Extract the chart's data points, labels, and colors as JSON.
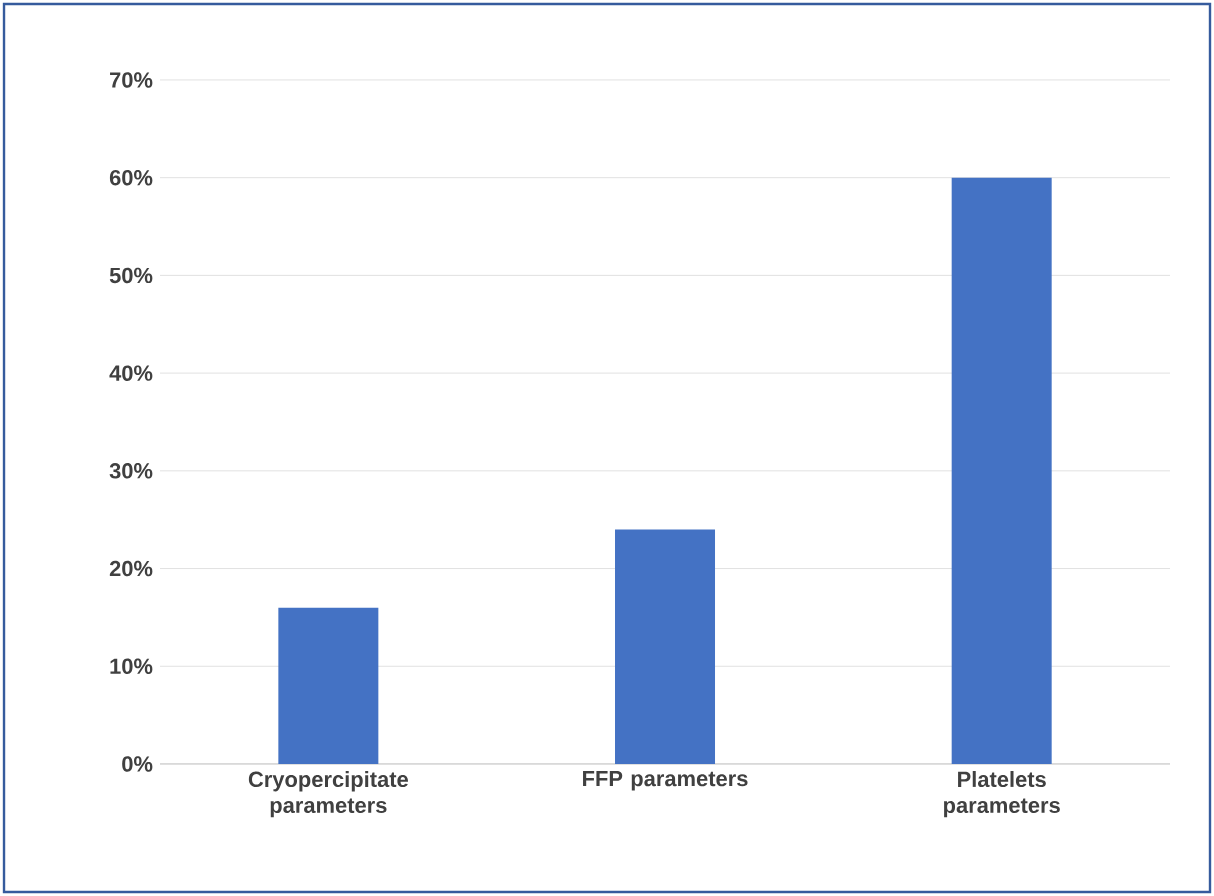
{
  "chart_data": {
    "type": "bar",
    "categories": [
      "Cryopercipitate parameters",
      "FFP parameters",
      "Platelets parameters"
    ],
    "values": [
      16,
      24,
      60
    ],
    "color": "#4472c4",
    "ylim": [
      0,
      70
    ],
    "yticks": [
      {
        "value": 0,
        "label": "0%"
      },
      {
        "value": 10,
        "label": "10%"
      },
      {
        "value": 20,
        "label": "20%"
      },
      {
        "value": 30,
        "label": "30%"
      },
      {
        "value": 40,
        "label": "40%"
      },
      {
        "value": 50,
        "label": "50%"
      },
      {
        "value": 60,
        "label": "60%"
      },
      {
        "value": 70,
        "label": "70%"
      }
    ],
    "grid": "y"
  }
}
